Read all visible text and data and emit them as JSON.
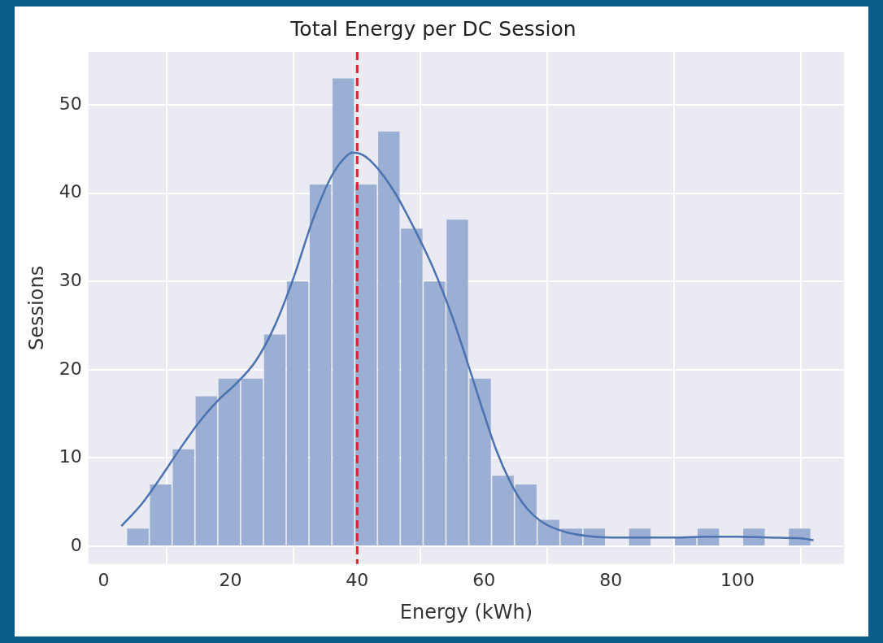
{
  "chart_data": {
    "type": "histogram",
    "title": "Total Energy per DC Session",
    "xlabel": "Energy (kWh)",
    "ylabel": "Sessions",
    "bins": [
      3.6,
      7.2,
      10.8,
      14.4,
      18,
      21.6,
      25.2,
      28.8,
      32.4,
      36,
      39.6,
      43.2,
      46.8,
      50.4,
      54,
      57.6,
      61.2,
      64.8,
      68.4,
      72,
      75.6,
      79.2,
      82.8,
      86.4,
      90,
      93.6,
      97.2,
      100.8,
      104.4,
      108,
      111.6
    ],
    "values": [
      2,
      7,
      11,
      17,
      19,
      19,
      24,
      30,
      41,
      53,
      41,
      47,
      36,
      30,
      37,
      19,
      8,
      7,
      3,
      2,
      2,
      0,
      2,
      0,
      1,
      2,
      0,
      2,
      0,
      2
    ],
    "color": "#9aafd3",
    "series": [
      {
        "type": "line",
        "color": "#4c72b0",
        "x": [
          2.8,
          6,
          9,
          12,
          15,
          18,
          21,
          24,
          27,
          30,
          33,
          36,
          38,
          39.2,
          41,
          43,
          46,
          49,
          52,
          55,
          58,
          60,
          62,
          64,
          66,
          68,
          70,
          73,
          76,
          80,
          85,
          90,
          95,
          100,
          105,
          110,
          112
        ],
        "values": [
          2.3,
          4.8,
          7.8,
          11,
          14,
          16.5,
          18.5,
          21,
          25,
          30.5,
          37,
          42,
          44,
          44.6,
          44.3,
          43,
          40,
          36,
          31.5,
          26,
          19.5,
          15,
          10.8,
          7.5,
          5,
          3.4,
          2.4,
          1.6,
          1.2,
          1,
          1,
          1,
          1.1,
          1.1,
          1,
          0.9,
          0.7
        ]
      }
    ],
    "xlim": [
      -2.4,
      116.8
    ],
    "ylim": [
      -2,
      56
    ],
    "xticks": [
      0,
      20,
      40,
      60,
      80,
      100
    ],
    "yticks": [
      0,
      10,
      20,
      30,
      40,
      50
    ],
    "grid": true,
    "ref_lines": [
      {
        "axis": "x",
        "value": 40,
        "color": "#d62728",
        "line_style": "dashed"
      }
    ]
  }
}
